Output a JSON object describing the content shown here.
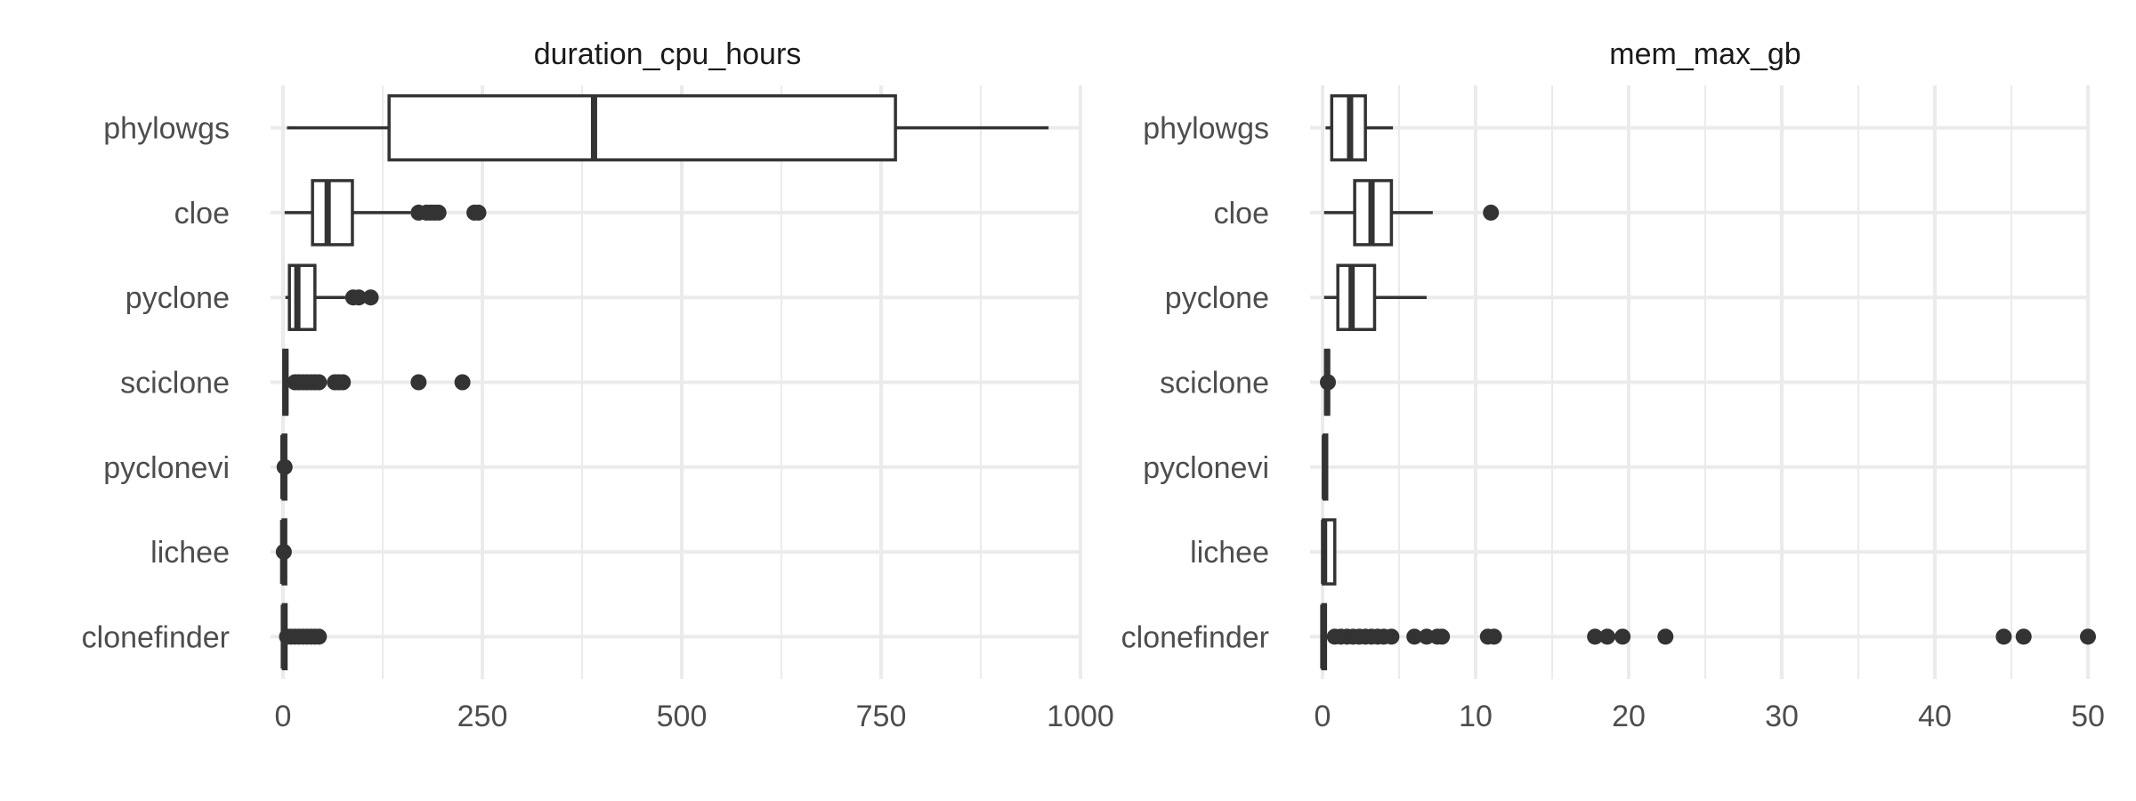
{
  "chart_data": [
    {
      "type": "boxplot",
      "title": "duration_cpu_hours",
      "xlabel": "",
      "ylabel": "",
      "xlim": [
        0,
        1000
      ],
      "xticks": [
        0,
        250,
        500,
        750,
        1000
      ],
      "xtick_labels": [
        "0",
        "250",
        "500",
        "750",
        "1000"
      ],
      "grid": true,
      "categories": [
        "phylowgs",
        "cloe",
        "pyclone",
        "sciclone",
        "pyclonevi",
        "lichee",
        "clonefinder"
      ],
      "boxes": [
        {
          "name": "phylowgs",
          "whisker_low": 5,
          "q1": 133,
          "median": 390,
          "q3": 768,
          "whisker_high": 960,
          "outliers": []
        },
        {
          "name": "cloe",
          "whisker_low": 2,
          "q1": 37,
          "median": 56,
          "q3": 87,
          "whisker_high": 160,
          "outliers": [
            170,
            180,
            185,
            190,
            195,
            240,
            245
          ]
        },
        {
          "name": "pyclone",
          "whisker_low": 3,
          "q1": 8,
          "median": 18,
          "q3": 40,
          "whisker_high": 78,
          "outliers": [
            88,
            95,
            110
          ]
        },
        {
          "name": "sciclone",
          "whisker_low": 0,
          "q1": 1,
          "median": 3,
          "q3": 5,
          "whisker_high": 8,
          "outliers": [
            15,
            20,
            25,
            30,
            35,
            40,
            45,
            65,
            70,
            75,
            170,
            225
          ]
        },
        {
          "name": "pyclonevi",
          "whisker_low": 0,
          "q1": 0.2,
          "median": 0.5,
          "q3": 1,
          "whisker_high": 2,
          "outliers": [
            2
          ]
        },
        {
          "name": "lichee",
          "whisker_low": 0,
          "q1": 0.1,
          "median": 0.2,
          "q3": 0.5,
          "whisker_high": 1,
          "outliers": [
            1
          ]
        },
        {
          "name": "clonefinder",
          "whisker_low": 0,
          "q1": 0.5,
          "median": 1,
          "q3": 2,
          "whisker_high": 4,
          "outliers": [
            5,
            10,
            15,
            20,
            25,
            30,
            35,
            40,
            45
          ]
        }
      ]
    },
    {
      "type": "boxplot",
      "title": "mem_max_gb",
      "xlabel": "",
      "ylabel": "",
      "xlim": [
        0,
        50
      ],
      "xticks": [
        0,
        10,
        20,
        30,
        40,
        50
      ],
      "xtick_labels": [
        "0",
        "10",
        "20",
        "30",
        "40",
        "50"
      ],
      "grid": true,
      "categories": [
        "phylowgs",
        "cloe",
        "pyclone",
        "sciclone",
        "pyclonevi",
        "lichee",
        "clonefinder"
      ],
      "boxes": [
        {
          "name": "phylowgs",
          "whisker_low": 0.2,
          "q1": 0.6,
          "median": 1.8,
          "q3": 2.8,
          "whisker_high": 4.6,
          "outliers": []
        },
        {
          "name": "cloe",
          "whisker_low": 0.1,
          "q1": 2.1,
          "median": 3.2,
          "q3": 4.5,
          "whisker_high": 7.2,
          "outliers": [
            11
          ]
        },
        {
          "name": "pyclone",
          "whisker_low": 0.1,
          "q1": 1.0,
          "median": 1.9,
          "q3": 3.4,
          "whisker_high": 6.8,
          "outliers": []
        },
        {
          "name": "sciclone",
          "whisker_low": 0.1,
          "q1": 0.2,
          "median": 0.3,
          "q3": 0.4,
          "whisker_high": 0.5,
          "outliers": [
            0.35
          ]
        },
        {
          "name": "pyclonevi",
          "whisker_low": 0.05,
          "q1": 0.1,
          "median": 0.15,
          "q3": 0.2,
          "whisker_high": 0.3,
          "outliers": []
        },
        {
          "name": "lichee",
          "whisker_low": 0.0,
          "q1": 0.05,
          "median": 0.1,
          "q3": 0.8,
          "whisker_high": 0.8,
          "outliers": []
        },
        {
          "name": "clonefinder",
          "whisker_low": 0.0,
          "q1": 0.02,
          "median": 0.05,
          "q3": 0.1,
          "whisker_high": 0.4,
          "outliers": [
            0.8,
            1.2,
            1.6,
            2.0,
            2.4,
            2.8,
            3.2,
            3.6,
            4.0,
            4.5,
            6.0,
            6.8,
            7.5,
            7.8,
            10.8,
            11.2,
            17.8,
            18.6,
            19.6,
            22.4,
            44.5,
            45.8,
            50.0
          ]
        }
      ]
    }
  ]
}
